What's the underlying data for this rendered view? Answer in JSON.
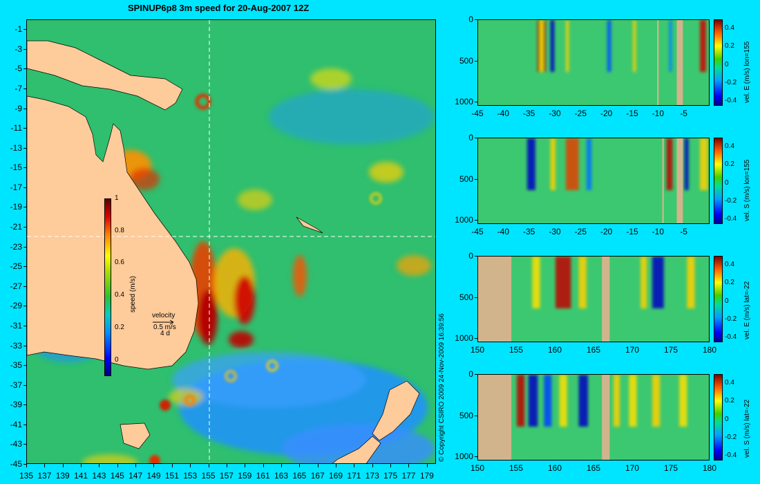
{
  "title": "SPINUP6p8 3m speed for 20-Aug-2007 12Z",
  "copyright": "© Copyright CSIRO 2009   24-Nov-2009 16:39:56",
  "colors": {
    "background": "#00e5ff",
    "land": "#fecb9a",
    "bathy_land": "#d2b48c",
    "section_line": "#ffffff"
  },
  "chart_data": [
    {
      "type": "heatmap",
      "name": "map",
      "title": "SPINUP6p8 3m speed for 20-Aug-2007 12Z",
      "xlim": [
        135,
        180
      ],
      "ylim": [
        -45,
        0
      ],
      "x_ticks": [
        "135",
        "137",
        "139",
        "141",
        "143",
        "145",
        "147",
        "149",
        "151",
        "153",
        "155",
        "157",
        "159",
        "161",
        "163",
        "165",
        "167",
        "169",
        "171",
        "173",
        "175",
        "177",
        "179"
      ],
      "y_ticks": [
        "-1",
        "-3",
        "-5",
        "-7",
        "-9",
        "-11",
        "-13",
        "-15",
        "-17",
        "-19",
        "-21",
        "-23",
        "-25",
        "-27",
        "-29",
        "-31",
        "-33",
        "-35",
        "-37",
        "-39",
        "-41",
        "-43",
        "-45"
      ],
      "section_lines": {
        "lon": 155,
        "lat": -22
      },
      "colorbar": {
        "label": "speed (m/s)",
        "ticks": [
          "0",
          "0.2",
          "0.4",
          "0.6",
          "0.8",
          "1"
        ],
        "range": [
          -0.1,
          1
        ]
      },
      "velocity_key": {
        "label": "velocity",
        "value": "0.5 m/s",
        "duration": "4 d"
      }
    },
    {
      "type": "heatmap",
      "name": "vel-e-lon155",
      "x_ticks": [
        "-45",
        "-40",
        "-35",
        "-30",
        "-25",
        "-20",
        "-15",
        "-10",
        "-5"
      ],
      "xlim": [
        -45,
        0
      ],
      "y_ticks": [
        "0",
        "500",
        "1000"
      ],
      "ylim": [
        0,
        1050
      ],
      "colorbar": {
        "label": "vel. E (m/s) lon=155",
        "ticks": [
          "0.4",
          "0.2",
          "0",
          "-0.2",
          "-0.4"
        ],
        "range": [
          -0.45,
          0.5
        ]
      }
    },
    {
      "type": "heatmap",
      "name": "vel-s-lon155",
      "x_ticks": [
        "-45",
        "-40",
        "-35",
        "-30",
        "-25",
        "-20",
        "-15",
        "-10",
        "-5"
      ],
      "xlim": [
        -45,
        0
      ],
      "y_ticks": [
        "0",
        "500",
        "1000"
      ],
      "ylim": [
        0,
        1050
      ],
      "colorbar": {
        "label": "vel. S (m/s) lon=155",
        "ticks": [
          "0.4",
          "0.2",
          "0",
          "-0.2",
          "-0.4"
        ],
        "range": [
          -0.45,
          0.5
        ]
      }
    },
    {
      "type": "heatmap",
      "name": "vel-e-lat-22",
      "x_ticks": [
        "150",
        "155",
        "160",
        "165",
        "170",
        "175",
        "180"
      ],
      "xlim": [
        150,
        180
      ],
      "y_ticks": [
        "0",
        "500",
        "1000"
      ],
      "ylim": [
        0,
        1050
      ],
      "colorbar": {
        "label": "vel. E (m/s) lat=-22",
        "ticks": [
          "0.4",
          "0.2",
          "0",
          "-0.2",
          "-0.4"
        ],
        "range": [
          -0.45,
          0.5
        ]
      }
    },
    {
      "type": "heatmap",
      "name": "vel-s-lat-22",
      "x_ticks": [
        "150",
        "155",
        "160",
        "165",
        "170",
        "175",
        "180"
      ],
      "xlim": [
        150,
        180
      ],
      "y_ticks": [
        "0",
        "500",
        "1000"
      ],
      "ylim": [
        0,
        1050
      ],
      "colorbar": {
        "label": "vel. S (m/s) lat=-22",
        "ticks": [
          "0.4",
          "0.2",
          "0",
          "-0.2",
          "-0.4"
        ],
        "range": [
          -0.45,
          0.5
        ]
      }
    }
  ]
}
